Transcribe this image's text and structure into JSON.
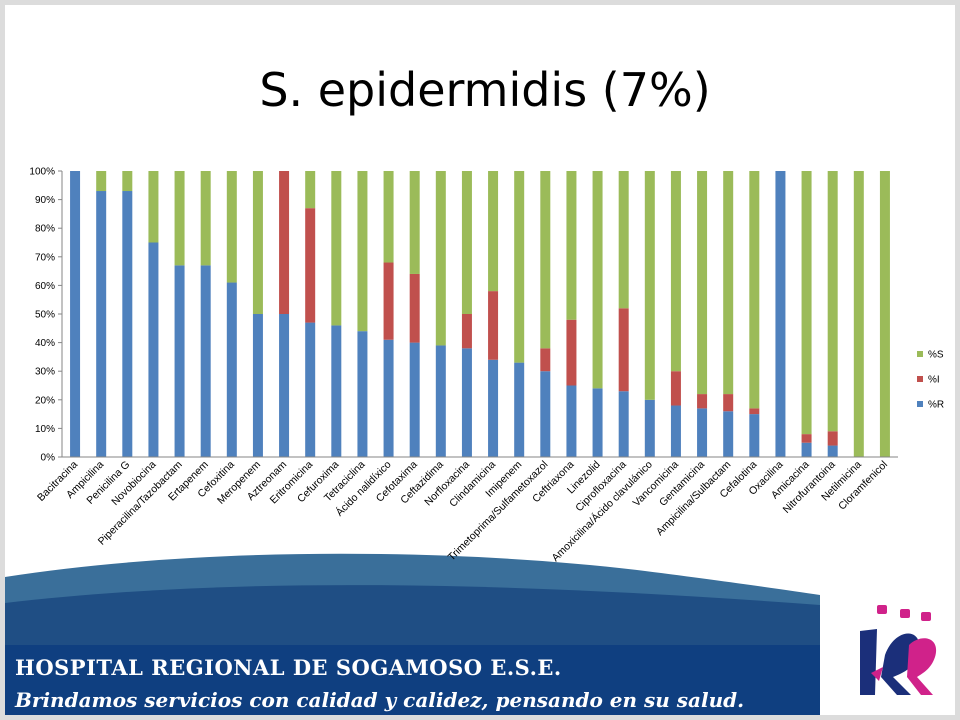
{
  "title": "S. epidermidis (7%)",
  "footer": {
    "hospital_name": "HOSPITAL REGIONAL DE SOGAMOSO E.S.E.",
    "slogan": "Brindamos servicios con calidad y calidez, pensando en su salud."
  },
  "chart_data": {
    "type": "bar",
    "stacked": true,
    "categories": [
      "Bacitracina",
      "Ampicilina",
      "Penicilina G",
      "Novobiocina",
      "Piperacilina/Tazobactam",
      "Ertapenem",
      "Cefoxitina",
      "Meropenem",
      "Aztreonam",
      "Eritromicina",
      "Cefuroxima",
      "Tetraciclina",
      "Ácido nalidíxico",
      "Cefotaxima",
      "Ceftazidima",
      "Norfloxacina",
      "Clindamicina",
      "Imipenem",
      "Trimetoprima/Sulfametoxazol",
      "Ceftriaxona",
      "Linezolid",
      "Ciprofloxacina",
      "Amoxicilina/Ácido clavulánico",
      "Vancomicina",
      "Gentamicina",
      "Ampicilina/Sulbactam",
      "Cefalotina",
      "Oxacilina",
      "Amicacina",
      "Nitrofurantoina",
      "Netilmicina",
      "Cloramfenicol"
    ],
    "series": [
      {
        "name": "%R",
        "color": "#4f81bd",
        "values": [
          100,
          93,
          93,
          75,
          67,
          67,
          61,
          50,
          50,
          47,
          46,
          44,
          41,
          40,
          39,
          38,
          34,
          33,
          30,
          25,
          24,
          23,
          20,
          18,
          17,
          16,
          15,
          100,
          5,
          4,
          0,
          0
        ]
      },
      {
        "name": "%I",
        "color": "#c0504d",
        "values": [
          0,
          0,
          0,
          0,
          0,
          0,
          0,
          0,
          50,
          40,
          0,
          0,
          27,
          24,
          0,
          12,
          24,
          0,
          8,
          23,
          0,
          29,
          0,
          12,
          5,
          6,
          2,
          0,
          3,
          5,
          0,
          0
        ]
      },
      {
        "name": "%S",
        "color": "#9bbb59",
        "values": [
          0,
          7,
          7,
          25,
          33,
          33,
          39,
          50,
          0,
          13,
          54,
          56,
          32,
          36,
          61,
          50,
          42,
          67,
          62,
          52,
          76,
          48,
          80,
          70,
          78,
          78,
          83,
          0,
          92,
          91,
          100,
          100
        ]
      }
    ],
    "yticks": [
      "0%",
      "10%",
      "20%",
      "30%",
      "40%",
      "50%",
      "60%",
      "70%",
      "80%",
      "90%",
      "100%"
    ],
    "ylim": [
      0,
      100
    ],
    "legend_position": "right",
    "legend_order": [
      "%S",
      "%I",
      "%R"
    ],
    "grid": false
  }
}
